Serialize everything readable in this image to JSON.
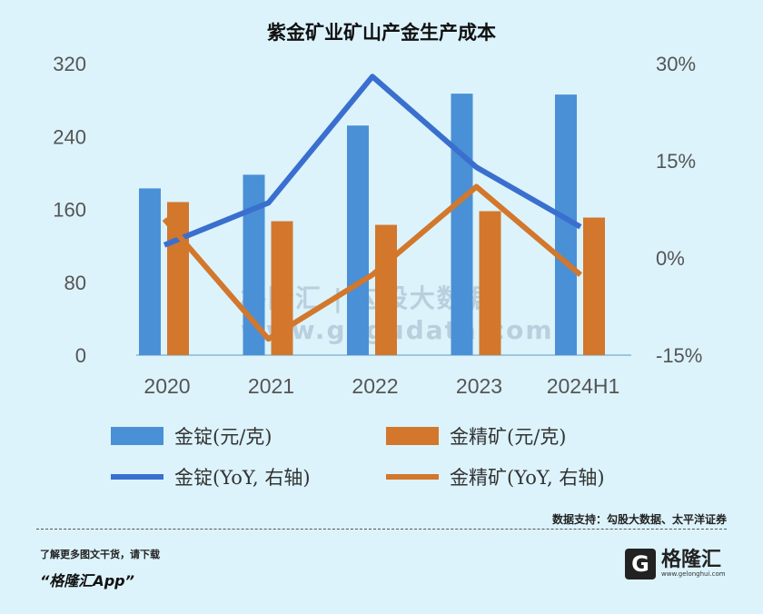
{
  "chart_data": {
    "type": "bar+line",
    "title": "紫金矿业矿山产金生产成本",
    "categories": [
      "2020",
      "2021",
      "2022",
      "2023",
      "2024H1"
    ],
    "left_axis": {
      "ylim": [
        0,
        320
      ],
      "ticks": [
        "0",
        "80",
        "160",
        "240",
        "320"
      ]
    },
    "right_axis": {
      "ylim": [
        -15,
        30
      ],
      "ticks": [
        "-15%",
        "0%",
        "15%",
        "30%"
      ]
    },
    "series": [
      {
        "name": "金锭(元/克)",
        "type": "bar",
        "axis": "left",
        "color": "#4a90d6",
        "values": [
          183,
          198,
          252,
          287,
          286
        ]
      },
      {
        "name": "金精矿(元/克)",
        "type": "bar",
        "axis": "left",
        "color": "#d2772c",
        "values": [
          168,
          147,
          143,
          158,
          151
        ]
      },
      {
        "name": "金锭(YoY, 右轴)",
        "type": "line",
        "axis": "right",
        "color": "#3a6fcf",
        "values": [
          2,
          8.5,
          28,
          14,
          4.8
        ]
      },
      {
        "name": "金精矿(YoY, 右轴)",
        "type": "line",
        "axis": "right",
        "color": "#d2772c",
        "values": [
          6,
          -12.5,
          -2.6,
          11,
          -2.6
        ]
      }
    ],
    "grid": false,
    "legend": "bottom"
  },
  "source": "数据支持：勾股大数据、太平洋证券",
  "watermark": "格隆汇 | 勾股大数据 www.gogudata.com",
  "footer": {
    "tip": "了解更多图文干货，请下载",
    "app": "“格隆汇App”",
    "logo_text": "格隆汇",
    "logo_url": "www.gelonghui.com"
  }
}
